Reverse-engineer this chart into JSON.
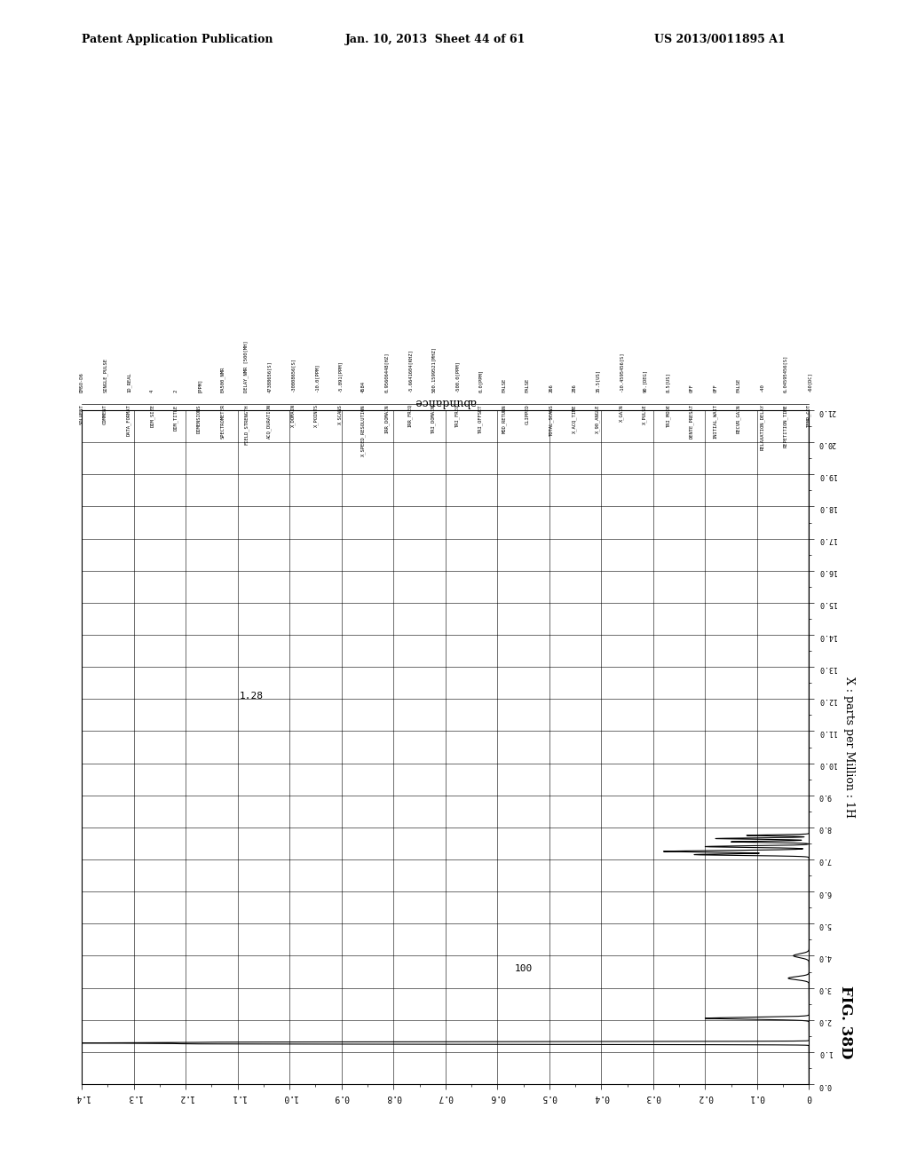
{
  "header_left": "Patent Application Publication",
  "header_center": "Jan. 10, 2013  Sheet 44 of 61",
  "header_right": "US 2013/0011895 A1",
  "figure_label": "FIG. 38D",
  "xlabel": "abundance",
  "ylabel": "X : parts per Million : 1H",
  "xmin": 0,
  "xmax": 1.4,
  "ymin": 0,
  "ymax": 21,
  "annotation_100": "100",
  "annotation_128": "1.28",
  "background_color": "#ffffff",
  "line_color": "#000000",
  "params_names": [
    "SOLVENT",
    "COMMENT",
    "DATA_FORMAT",
    "DIM_SIZE",
    "DIM_TITLE",
    "DIMENSIONS",
    "SPECTROMETER",
    "FIELD_STRENGTH",
    "ACQ_DURATION",
    "X_DOMAIN",
    "X_POINTS",
    "X_SCANS",
    "X_SPEED_RESOLUTION",
    "IRR_DOMAIN",
    "IRR_FREQ",
    "TRI_DOMAIN",
    "TRI_FREQ",
    "TRI_OFFSET",
    "MOD_RETURN",
    "CLIPPED",
    "TOTAL_SCANS",
    "X_ACQ_TIME",
    "X_90_ANGLE",
    "X_GAIN",
    "X_PULSE",
    "TRI_MODE",
    "DENTE_PRESAT",
    "INITIAL_WAIT",
    "RECVR_GAIN",
    "RELAXATION_DELAY",
    "REPETITION_TIME",
    "TEMP_COT"
  ],
  "params_values": [
    "DMSO-D6",
    "SINGLE_PULSE",
    "1D_REAL",
    "4",
    "2",
    "[PPM]",
    "EA500_NMR",
    "DELAY_NMR [500[MH]",
    "47388656[S]",
    "-30808656[S]",
    "-10.0[PPM]",
    "-5.891[PPM]",
    "4584",
    "0.95606448[HZ]",
    "-5.6641604[KHZ]",
    "500.1599521[MHZ]",
    "-500.0[PPM]",
    "0.0[PPM]",
    "FALSE",
    "FALSE",
    "266",
    "286",
    "35.5[US]",
    "-10.4595456[S]",
    "90.[DEG]",
    "8.5[US]",
    "OFF",
    "OFF",
    "FALSE",
    "-40",
    "6.04595456[S]",
    "-60[DC]"
  ]
}
